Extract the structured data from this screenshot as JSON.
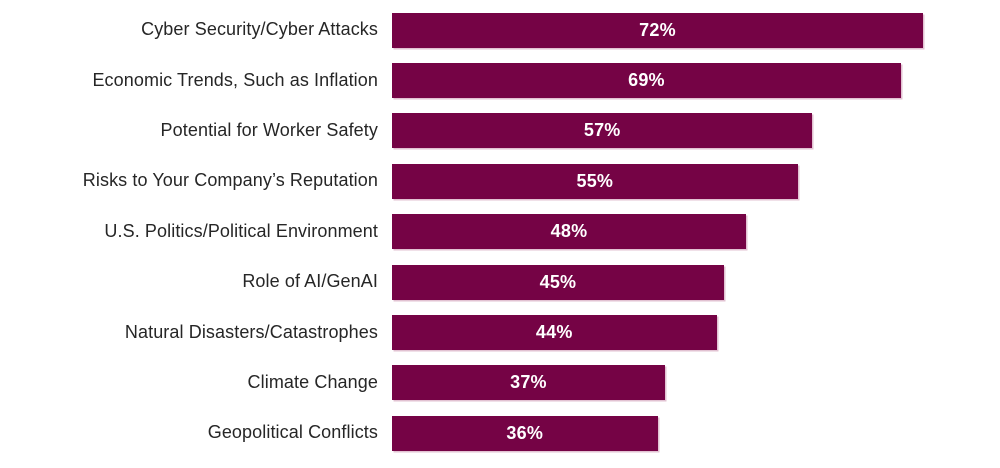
{
  "chart_data": {
    "type": "bar",
    "orientation": "horizontal",
    "categories": [
      "Cyber Security/Cyber Attacks",
      "Economic Trends, Such as Inflation",
      "Potential for Worker Safety",
      "Risks to Your Company’s Reputation",
      "U.S. Politics/Political Environment",
      "Role of AI/GenAI",
      "Natural Disasters/Catastrophes",
      "Climate Change",
      "Geopolitical Conflicts"
    ],
    "values": [
      72,
      69,
      57,
      55,
      48,
      45,
      44,
      37,
      36
    ],
    "value_suffix": "%",
    "xlim": [
      0,
      82
    ],
    "grid": false,
    "legend": false,
    "bar_color": "#750345",
    "bar_shadow_color": "#e2c2d2",
    "category_label_color": "#262626",
    "value_label_color": "#ffffff",
    "background_color": "#ffffff"
  }
}
